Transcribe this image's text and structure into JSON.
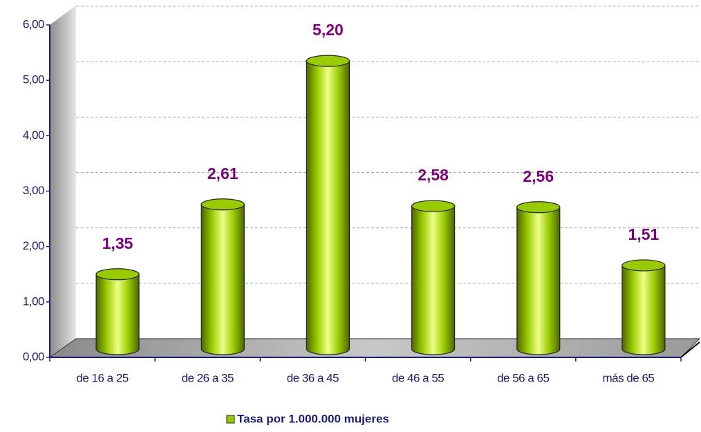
{
  "chart_data": {
    "type": "bar",
    "categories": [
      "de 16 a 25",
      "de 26 a 35",
      "de 36 a 45",
      "de 46 a 55",
      "de 56 a 65",
      "más de 65"
    ],
    "series": [
      {
        "name": "Tasa por 1.000.000 mujeres",
        "color": "#99cc00",
        "values": [
          1.35,
          2.61,
          5.2,
          2.58,
          2.56,
          1.51
        ],
        "value_labels": [
          "1,35",
          "2,61",
          "5,20",
          "2,58",
          "2,56",
          "1,51"
        ]
      }
    ],
    "ylim": [
      0,
      6
    ],
    "yticks": [
      {
        "value": 0,
        "label": "0,00"
      },
      {
        "value": 1,
        "label": "1,00"
      },
      {
        "value": 2,
        "label": "2,00"
      },
      {
        "value": 3,
        "label": "3,00"
      },
      {
        "value": 4,
        "label": "4,00"
      },
      {
        "value": 5,
        "label": "5,00"
      },
      {
        "value": 6,
        "label": "6,00"
      }
    ],
    "grid": true,
    "legend": "bottom"
  }
}
